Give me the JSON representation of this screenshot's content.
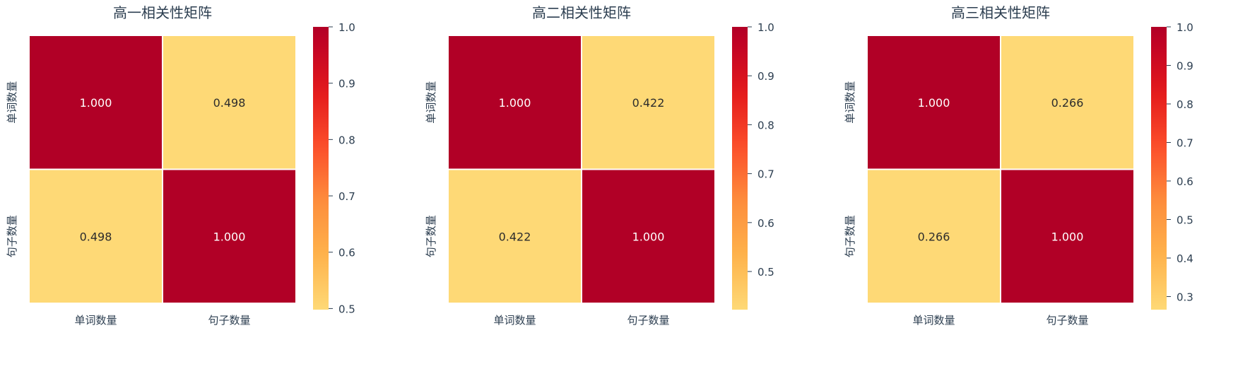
{
  "chart_data": [
    {
      "type": "heatmap",
      "title": "高一相关性矩阵",
      "x_categories": [
        "单词数量",
        "句子数量"
      ],
      "y_categories": [
        "单词数量",
        "句子数量"
      ],
      "values": [
        [
          1.0,
          0.498
        ],
        [
          0.498,
          1.0
        ]
      ],
      "value_labels": [
        [
          "1.000",
          "0.498"
        ],
        [
          "0.498",
          "1.000"
        ]
      ],
      "colorbar": {
        "min": 0.498,
        "max": 1.0,
        "ticks": [
          0.5,
          0.6,
          0.7,
          0.8,
          0.9,
          1.0
        ],
        "tick_labels": [
          "0.5",
          "0.6",
          "0.7",
          "0.8",
          "0.9",
          "1.0"
        ]
      }
    },
    {
      "type": "heatmap",
      "title": "高二相关性矩阵",
      "x_categories": [
        "单词数量",
        "句子数量"
      ],
      "y_categories": [
        "单词数量",
        "句子数量"
      ],
      "values": [
        [
          1.0,
          0.422
        ],
        [
          0.422,
          1.0
        ]
      ],
      "value_labels": [
        [
          "1.000",
          "0.422"
        ],
        [
          "0.422",
          "1.000"
        ]
      ],
      "colorbar": {
        "min": 0.422,
        "max": 1.0,
        "ticks": [
          0.5,
          0.6,
          0.7,
          0.8,
          0.9,
          1.0
        ],
        "tick_labels": [
          "0.5",
          "0.6",
          "0.7",
          "0.8",
          "0.9",
          "1.0"
        ]
      }
    },
    {
      "type": "heatmap",
      "title": "高三相关性矩阵",
      "x_categories": [
        "单词数量",
        "句子数量"
      ],
      "y_categories": [
        "单词数量",
        "句子数量"
      ],
      "values": [
        [
          1.0,
          0.266
        ],
        [
          0.266,
          1.0
        ]
      ],
      "value_labels": [
        [
          "1.000",
          "0.266"
        ],
        [
          "0.266",
          "1.000"
        ]
      ],
      "colorbar": {
        "min": 0.266,
        "max": 1.0,
        "ticks": [
          0.3,
          0.4,
          0.5,
          0.6,
          0.7,
          0.8,
          0.9,
          1.0
        ],
        "tick_labels": [
          "0.3",
          "0.4",
          "0.5",
          "0.6",
          "0.7",
          "0.8",
          "0.9",
          "1.0"
        ]
      }
    }
  ],
  "colormap": {
    "name": "YlOrRd",
    "stops": [
      "#ffffcc",
      "#ffeda0",
      "#fed976",
      "#feb24c",
      "#fd8d3c",
      "#fc4e2a",
      "#e31a1c",
      "#bd0026",
      "#800026"
    ],
    "display_range": [
      0.25,
      0.9
    ]
  }
}
